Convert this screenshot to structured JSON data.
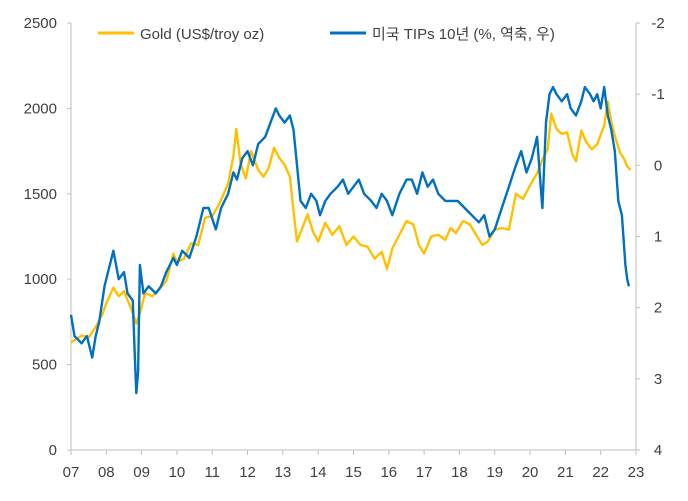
{
  "chart_data": {
    "type": "line",
    "x_ticks": [
      "07",
      "08",
      "09",
      "10",
      "11",
      "12",
      "13",
      "14",
      "15",
      "16",
      "17",
      "18",
      "19",
      "20",
      "21",
      "22",
      "23"
    ],
    "x_range": [
      2007,
      2023
    ],
    "y_left_ticks": [
      "0",
      "500",
      "1000",
      "1500",
      "2000",
      "2500"
    ],
    "y_left_range": [
      0,
      2500
    ],
    "y_right_ticks": [
      "-2",
      "-1",
      "0",
      "1",
      "2",
      "3",
      "4"
    ],
    "y_right_range": [
      4,
      -2
    ],
    "y_right_inverted": true,
    "legend_position": "top",
    "grid": false,
    "series": [
      {
        "name": "Gold (US$/troy oz)",
        "axis": "left",
        "color": "#FFC000",
        "points": [
          [
            2007.0,
            630
          ],
          [
            2007.3,
            670
          ],
          [
            2007.5,
            660
          ],
          [
            2007.7,
            720
          ],
          [
            2007.9,
            800
          ],
          [
            2008.0,
            860
          ],
          [
            2008.2,
            950
          ],
          [
            2008.35,
            900
          ],
          [
            2008.5,
            930
          ],
          [
            2008.7,
            830
          ],
          [
            2008.85,
            740
          ],
          [
            2008.95,
            800
          ],
          [
            2009.1,
            920
          ],
          [
            2009.3,
            900
          ],
          [
            2009.5,
            940
          ],
          [
            2009.7,
            990
          ],
          [
            2009.9,
            1150
          ],
          [
            2010.0,
            1100
          ],
          [
            2010.2,
            1120
          ],
          [
            2010.4,
            1210
          ],
          [
            2010.6,
            1200
          ],
          [
            2010.8,
            1360
          ],
          [
            2011.0,
            1370
          ],
          [
            2011.2,
            1440
          ],
          [
            2011.45,
            1560
          ],
          [
            2011.6,
            1720
          ],
          [
            2011.68,
            1880
          ],
          [
            2011.8,
            1680
          ],
          [
            2011.95,
            1590
          ],
          [
            2012.1,
            1750
          ],
          [
            2012.3,
            1640
          ],
          [
            2012.45,
            1600
          ],
          [
            2012.6,
            1650
          ],
          [
            2012.75,
            1770
          ],
          [
            2012.9,
            1710
          ],
          [
            2013.05,
            1670
          ],
          [
            2013.2,
            1600
          ],
          [
            2013.3,
            1400
          ],
          [
            2013.4,
            1220
          ],
          [
            2013.55,
            1300
          ],
          [
            2013.7,
            1380
          ],
          [
            2013.85,
            1280
          ],
          [
            2014.0,
            1220
          ],
          [
            2014.2,
            1330
          ],
          [
            2014.4,
            1260
          ],
          [
            2014.6,
            1310
          ],
          [
            2014.8,
            1200
          ],
          [
            2015.0,
            1250
          ],
          [
            2015.2,
            1200
          ],
          [
            2015.4,
            1190
          ],
          [
            2015.6,
            1120
          ],
          [
            2015.8,
            1160
          ],
          [
            2015.95,
            1060
          ],
          [
            2016.1,
            1180
          ],
          [
            2016.3,
            1260
          ],
          [
            2016.5,
            1340
          ],
          [
            2016.7,
            1320
          ],
          [
            2016.85,
            1200
          ],
          [
            2017.0,
            1150
          ],
          [
            2017.2,
            1250
          ],
          [
            2017.4,
            1260
          ],
          [
            2017.6,
            1230
          ],
          [
            2017.75,
            1300
          ],
          [
            2017.9,
            1270
          ],
          [
            2018.1,
            1340
          ],
          [
            2018.3,
            1320
          ],
          [
            2018.5,
            1250
          ],
          [
            2018.65,
            1200
          ],
          [
            2018.8,
            1220
          ],
          [
            2019.0,
            1290
          ],
          [
            2019.2,
            1300
          ],
          [
            2019.4,
            1290
          ],
          [
            2019.6,
            1500
          ],
          [
            2019.8,
            1470
          ],
          [
            2020.0,
            1550
          ],
          [
            2020.2,
            1620
          ],
          [
            2020.35,
            1700
          ],
          [
            2020.5,
            1760
          ],
          [
            2020.6,
            1970
          ],
          [
            2020.75,
            1880
          ],
          [
            2020.9,
            1850
          ],
          [
            2021.05,
            1860
          ],
          [
            2021.2,
            1730
          ],
          [
            2021.3,
            1690
          ],
          [
            2021.45,
            1870
          ],
          [
            2021.6,
            1800
          ],
          [
            2021.75,
            1760
          ],
          [
            2021.9,
            1790
          ],
          [
            2022.1,
            1900
          ],
          [
            2022.2,
            2040
          ],
          [
            2022.3,
            1920
          ],
          [
            2022.4,
            1840
          ],
          [
            2022.55,
            1740
          ],
          [
            2022.65,
            1710
          ],
          [
            2022.75,
            1660
          ],
          [
            2022.85,
            1640
          ]
        ]
      },
      {
        "name": "미국 TIPs 10년 (%, 역축, 우)",
        "axis": "right",
        "color": "#0070C0",
        "points": [
          [
            2007.0,
            2.1
          ],
          [
            2007.1,
            2.4
          ],
          [
            2007.3,
            2.5
          ],
          [
            2007.45,
            2.4
          ],
          [
            2007.6,
            2.7
          ],
          [
            2007.7,
            2.4
          ],
          [
            2007.8,
            2.2
          ],
          [
            2007.95,
            1.7
          ],
          [
            2008.1,
            1.4
          ],
          [
            2008.2,
            1.2
          ],
          [
            2008.35,
            1.6
          ],
          [
            2008.5,
            1.5
          ],
          [
            2008.6,
            1.8
          ],
          [
            2008.75,
            1.9
          ],
          [
            2008.8,
            2.6
          ],
          [
            2008.85,
            3.2
          ],
          [
            2008.9,
            2.9
          ],
          [
            2008.95,
            1.4
          ],
          [
            2009.05,
            1.8
          ],
          [
            2009.2,
            1.7
          ],
          [
            2009.4,
            1.8
          ],
          [
            2009.55,
            1.7
          ],
          [
            2009.7,
            1.5
          ],
          [
            2009.9,
            1.3
          ],
          [
            2010.0,
            1.4
          ],
          [
            2010.15,
            1.2
          ],
          [
            2010.35,
            1.3
          ],
          [
            2010.55,
            1.0
          ],
          [
            2010.75,
            0.6
          ],
          [
            2010.9,
            0.6
          ],
          [
            2011.1,
            0.9
          ],
          [
            2011.25,
            0.6
          ],
          [
            2011.45,
            0.4
          ],
          [
            2011.6,
            0.1
          ],
          [
            2011.7,
            0.2
          ],
          [
            2011.85,
            -0.1
          ],
          [
            2012.0,
            -0.2
          ],
          [
            2012.15,
            0.0
          ],
          [
            2012.3,
            -0.3
          ],
          [
            2012.5,
            -0.4
          ],
          [
            2012.65,
            -0.6
          ],
          [
            2012.8,
            -0.8
          ],
          [
            2012.9,
            -0.7
          ],
          [
            2013.05,
            -0.6
          ],
          [
            2013.2,
            -0.7
          ],
          [
            2013.3,
            -0.5
          ],
          [
            2013.4,
            0.0
          ],
          [
            2013.5,
            0.5
          ],
          [
            2013.65,
            0.6
          ],
          [
            2013.8,
            0.4
          ],
          [
            2013.95,
            0.5
          ],
          [
            2014.05,
            0.7
          ],
          [
            2014.2,
            0.5
          ],
          [
            2014.35,
            0.4
          ],
          [
            2014.55,
            0.3
          ],
          [
            2014.7,
            0.2
          ],
          [
            2014.85,
            0.4
          ],
          [
            2015.0,
            0.3
          ],
          [
            2015.15,
            0.2
          ],
          [
            2015.3,
            0.4
          ],
          [
            2015.5,
            0.5
          ],
          [
            2015.65,
            0.6
          ],
          [
            2015.8,
            0.4
          ],
          [
            2015.95,
            0.5
          ],
          [
            2016.1,
            0.7
          ],
          [
            2016.3,
            0.4
          ],
          [
            2016.5,
            0.2
          ],
          [
            2016.65,
            0.2
          ],
          [
            2016.8,
            0.4
          ],
          [
            2016.95,
            0.1
          ],
          [
            2017.1,
            0.3
          ],
          [
            2017.25,
            0.2
          ],
          [
            2017.4,
            0.4
          ],
          [
            2017.6,
            0.5
          ],
          [
            2017.8,
            0.5
          ],
          [
            2017.95,
            0.5
          ],
          [
            2018.15,
            0.6
          ],
          [
            2018.35,
            0.7
          ],
          [
            2018.55,
            0.8
          ],
          [
            2018.7,
            0.7
          ],
          [
            2018.85,
            1.0
          ],
          [
            2019.0,
            0.9
          ],
          [
            2019.2,
            0.6
          ],
          [
            2019.4,
            0.3
          ],
          [
            2019.6,
            0.0
          ],
          [
            2019.75,
            -0.2
          ],
          [
            2019.9,
            0.1
          ],
          [
            2020.05,
            -0.1
          ],
          [
            2020.2,
            -0.4
          ],
          [
            2020.3,
            0.3
          ],
          [
            2020.35,
            0.6
          ],
          [
            2020.45,
            -0.6
          ],
          [
            2020.55,
            -1.0
          ],
          [
            2020.65,
            -1.1
          ],
          [
            2020.75,
            -1.0
          ],
          [
            2020.9,
            -0.9
          ],
          [
            2021.05,
            -1.0
          ],
          [
            2021.15,
            -0.8
          ],
          [
            2021.3,
            -0.7
          ],
          [
            2021.45,
            -0.9
          ],
          [
            2021.55,
            -1.1
          ],
          [
            2021.7,
            -1.0
          ],
          [
            2021.8,
            -0.9
          ],
          [
            2021.9,
            -1.0
          ],
          [
            2022.0,
            -0.8
          ],
          [
            2022.1,
            -1.1
          ],
          [
            2022.2,
            -0.7
          ],
          [
            2022.3,
            -0.5
          ],
          [
            2022.4,
            -0.2
          ],
          [
            2022.5,
            0.5
          ],
          [
            2022.6,
            0.7
          ],
          [
            2022.7,
            1.4
          ],
          [
            2022.75,
            1.6
          ],
          [
            2022.8,
            1.7
          ]
        ]
      }
    ]
  }
}
